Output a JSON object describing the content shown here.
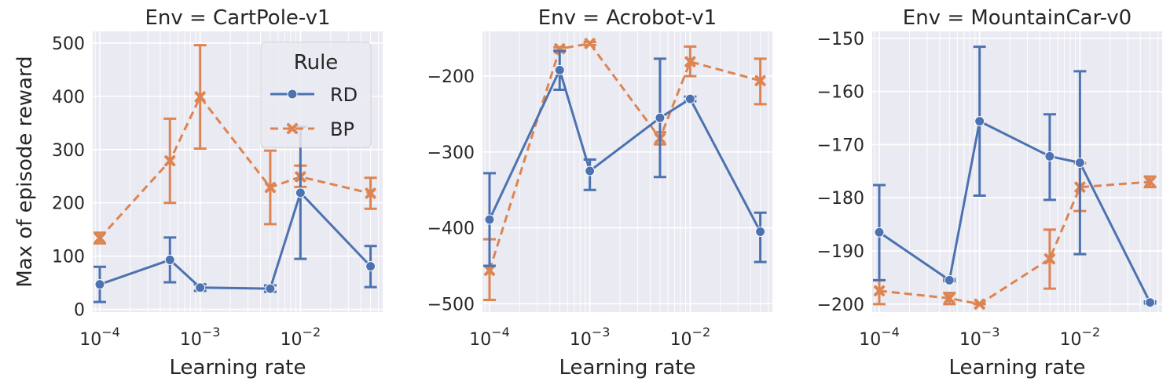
{
  "chart_data": [
    {
      "type": "line",
      "title": "Env = CartPole-v1",
      "xlabel": "Learning rate",
      "ylabel": "Max of episode reward",
      "xscale": "log",
      "xlim": [
        8.5e-05,
        0.066
      ],
      "ylim": [
        -5,
        522
      ],
      "yticks": [
        0,
        100,
        200,
        300,
        400,
        500
      ],
      "xticks": [
        0.0001,
        0.001,
        0.01
      ],
      "xtick_labels": [
        "10^-4",
        "10^-3",
        "10^-2"
      ],
      "grid": true,
      "legend": "top-right",
      "series": [
        {
          "name": "RD",
          "x": [
            0.0001,
            0.0005,
            0.001,
            0.005,
            0.01,
            0.05
          ],
          "y": [
            47,
            93,
            41,
            39,
            219,
            81
          ],
          "yerr_low": [
            14,
            51,
            35,
            33,
            95,
            42
          ],
          "yerr_high": [
            80,
            135,
            47,
            45,
            343,
            119
          ]
        },
        {
          "name": "BP",
          "x": [
            0.0001,
            0.0005,
            0.001,
            0.005,
            0.01,
            0.05
          ],
          "y": [
            134,
            279,
            399,
            229,
            249,
            218
          ],
          "yerr_low": [
            124,
            200,
            302,
            160,
            230,
            189
          ],
          "yerr_high": [
            144,
            358,
            496,
            298,
            270,
            247
          ]
        }
      ]
    },
    {
      "type": "line",
      "title": "Env = Acrobot-v1",
      "xlabel": "Learning rate",
      "ylabel": "",
      "xscale": "log",
      "xlim": [
        8.5e-05,
        0.066
      ],
      "ylim": [
        -511,
        -141
      ],
      "yticks": [
        -500,
        -400,
        -300,
        -200
      ],
      "xticks": [
        0.0001,
        0.001,
        0.01
      ],
      "xtick_labels": [
        "10^-4",
        "10^-3",
        "10^-2"
      ],
      "grid": true,
      "series": [
        {
          "name": "RD",
          "x": [
            0.0001,
            0.0005,
            0.001,
            0.005,
            0.01,
            0.05
          ],
          "y": [
            -389,
            -192,
            -325,
            -255,
            -230,
            -405
          ],
          "yerr_low": [
            -450,
            -218,
            -350,
            -333,
            -233,
            -445
          ],
          "yerr_high": [
            -328,
            -167,
            -310,
            -177,
            -227,
            -380
          ]
        },
        {
          "name": "BP",
          "x": [
            0.0001,
            0.0005,
            0.001,
            0.005,
            0.01,
            0.05
          ],
          "y": [
            -456,
            -164,
            -157,
            -282,
            -181,
            -206
          ],
          "yerr_low": [
            -495,
            -166,
            -159,
            -290,
            -200,
            -237
          ],
          "yerr_high": [
            -415,
            -162,
            -155,
            -274,
            -161,
            -177
          ]
        }
      ]
    },
    {
      "type": "line",
      "title": "Env = MountainCar-v0",
      "xlabel": "Learning rate",
      "ylabel": "",
      "xscale": "log",
      "xlim": [
        8.5e-05,
        0.066
      ],
      "ylim": [
        -201.5,
        -148.7
      ],
      "yticks": [
        -200,
        -190,
        -180,
        -170,
        -160,
        -150
      ],
      "xticks": [
        0.0001,
        0.001,
        0.01
      ],
      "xtick_labels": [
        "10^-4",
        "10^-3",
        "10^-2"
      ],
      "grid": true,
      "series": [
        {
          "name": "RD",
          "x": [
            0.0001,
            0.0005,
            0.001,
            0.005,
            0.01,
            0.05
          ],
          "y": [
            -186.5,
            -195.5,
            -165.6,
            -172.2,
            -173.4,
            -199.7
          ],
          "yerr_low": [
            -195.5,
            -195.7,
            -179.6,
            -180.4,
            -190.6,
            -199.9
          ],
          "yerr_high": [
            -177.6,
            -195.3,
            -151.6,
            -164.3,
            -156.2,
            -199.5
          ]
        },
        {
          "name": "BP",
          "x": [
            0.0001,
            0.0005,
            0.001,
            0.005,
            0.01,
            0.05
          ],
          "y": [
            -197.5,
            -198.9,
            -200.0,
            -191.5,
            -178.0,
            -177.0
          ],
          "yerr_low": [
            -200.0,
            -200.0,
            -200.0,
            -197.1,
            -182.5,
            -178.0
          ],
          "yerr_high": [
            -195.5,
            -197.9,
            -199.9,
            -186.0,
            -173.5,
            -176.0
          ]
        }
      ]
    }
  ],
  "legend": {
    "title": "Rule",
    "entries": [
      {
        "name": "RD",
        "color": "#4c72b0",
        "marker": "circle",
        "dash": "solid"
      },
      {
        "name": "BP",
        "color": "#dd8452",
        "marker": "x",
        "dash": "dashed"
      }
    ]
  },
  "colors": {
    "RD": "#4c72b0",
    "BP": "#dd8452",
    "panel_bg": "#eaeaf2",
    "grid": "#ffffff"
  }
}
